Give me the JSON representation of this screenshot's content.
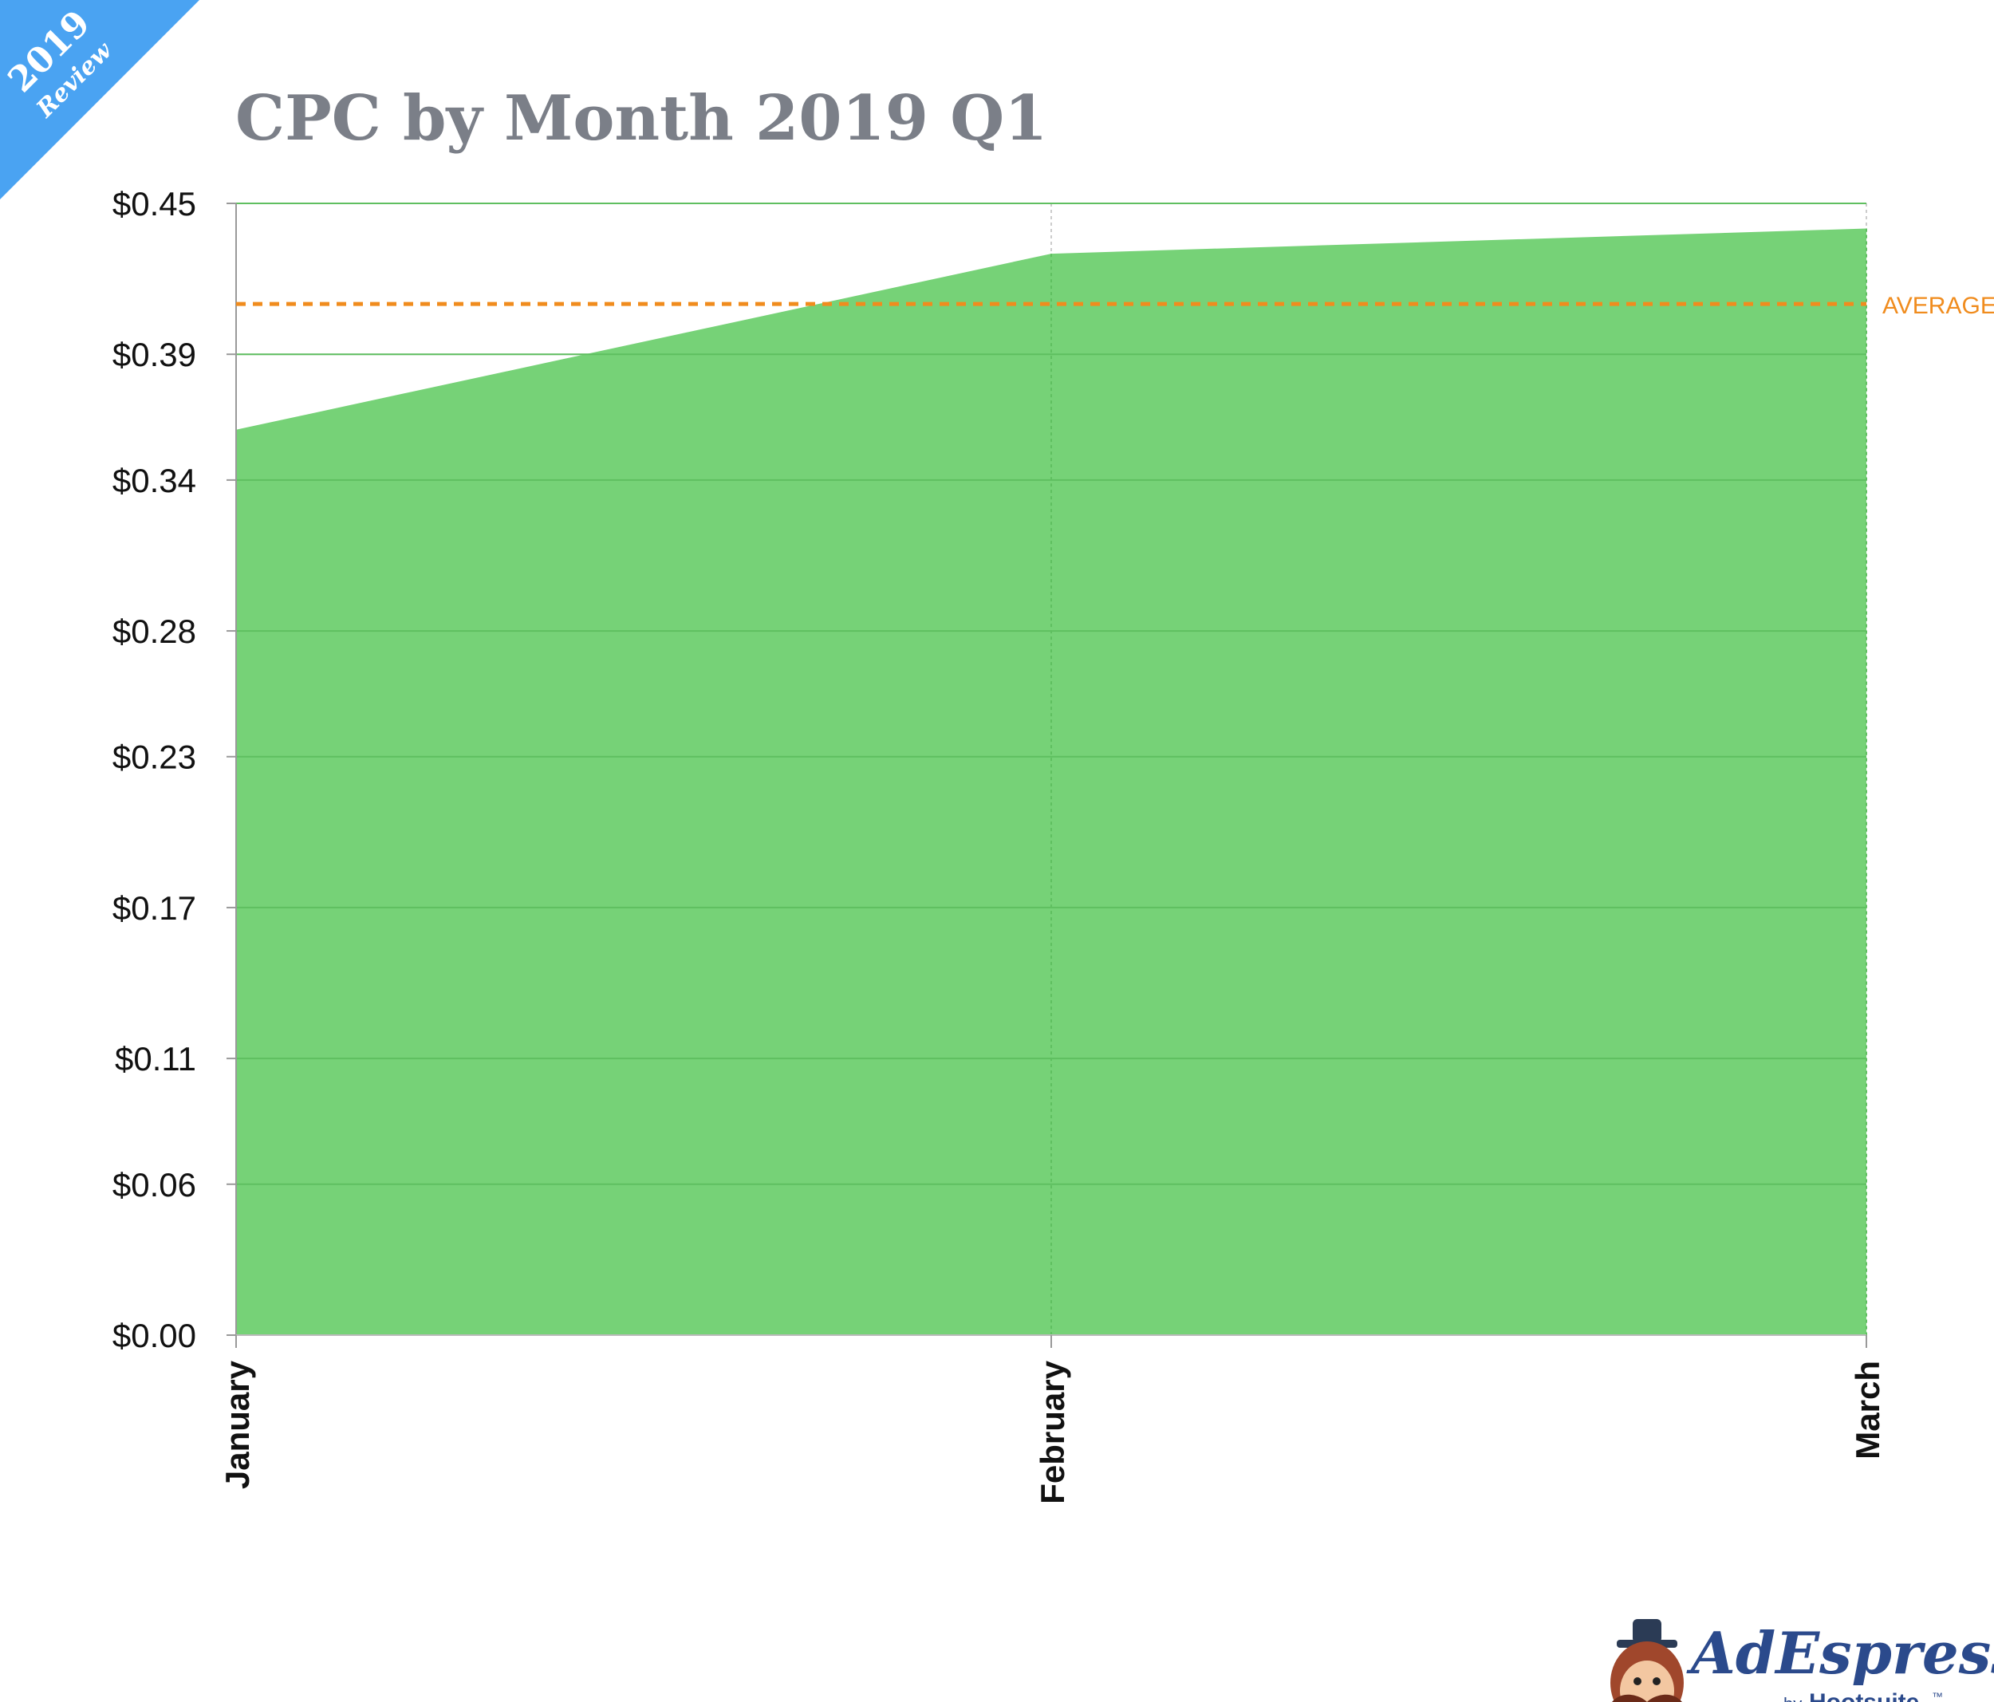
{
  "badge": {
    "year": "2019",
    "label": "Review",
    "color": "#4aa3f2"
  },
  "logo": {
    "brand": "AdEspresso",
    "by": "by",
    "parent": "Hootsuite",
    "tm": "™",
    "color": "#2b4a8c",
    "icon": "mascot-icon"
  },
  "chart_data": {
    "type": "area",
    "title": "CPC by Month 2019 Q1",
    "categories": [
      "January",
      "February",
      "March"
    ],
    "values": [
      0.36,
      0.43,
      0.44
    ],
    "y_ticks": [
      0.0,
      0.06,
      0.11,
      0.17,
      0.23,
      0.28,
      0.34,
      0.39,
      0.45
    ],
    "y_tick_labels": [
      "$0.00",
      "$0.06",
      "$0.11",
      "$0.17",
      "$0.23",
      "$0.28",
      "$0.34",
      "$0.39",
      "$0.45"
    ],
    "ylim": [
      0,
      0.45
    ],
    "average": 0.41,
    "average_label": "AVERAGE",
    "grid": true,
    "colors": {
      "fill": "#76d277",
      "average": "#f08c1e",
      "title": "#7b7f88",
      "grid": "#d6d6d6"
    }
  }
}
